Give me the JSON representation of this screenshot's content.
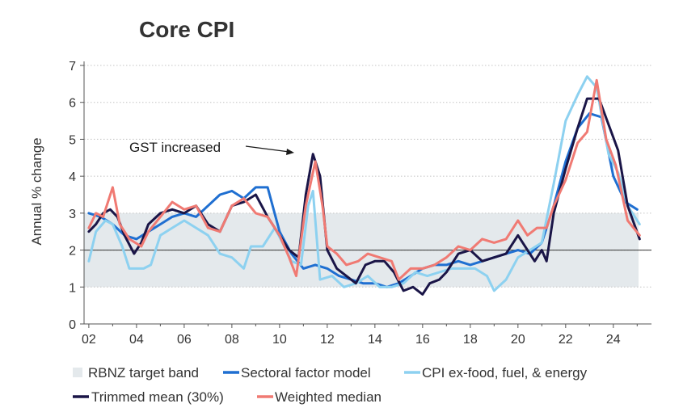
{
  "chart_data": {
    "type": "line",
    "title": "Core CPI",
    "xlabel": "",
    "ylabel": "Annual % change",
    "xlim": [
      2001.8,
      2025.6
    ],
    "ylim": [
      0,
      7
    ],
    "x_tick_labels": [
      "02",
      "04",
      "06",
      "08",
      "10",
      "12",
      "14",
      "16",
      "18",
      "20",
      "22",
      "24"
    ],
    "x_tick_values": [
      2002,
      2004,
      2006,
      2008,
      2010,
      2012,
      2014,
      2016,
      2018,
      2020,
      2022,
      2024
    ],
    "y_ticks": [
      0,
      1,
      2,
      3,
      4,
      5,
      6,
      7
    ],
    "grid": "horizontal dotted",
    "reference_line": 2,
    "target_band": {
      "name": "RBNZ target band",
      "low": 1,
      "high": 3,
      "color": "#e4e9ec"
    },
    "annotation": {
      "text": "GST increased",
      "x": 2011.3,
      "y": 4.6
    },
    "legend_placement": "bottom",
    "series": [
      {
        "name": "Sectoral factor model",
        "color": "#1f6fd1",
        "points": [
          [
            2002,
            3.0
          ],
          [
            2002.5,
            2.9
          ],
          [
            2003,
            2.7
          ],
          [
            2003.5,
            2.4
          ],
          [
            2004,
            2.3
          ],
          [
            2004.5,
            2.5
          ],
          [
            2005,
            2.7
          ],
          [
            2005.5,
            2.9
          ],
          [
            2006,
            3.0
          ],
          [
            2006.5,
            2.9
          ],
          [
            2007,
            3.2
          ],
          [
            2007.5,
            3.5
          ],
          [
            2008,
            3.6
          ],
          [
            2008.5,
            3.4
          ],
          [
            2009,
            3.7
          ],
          [
            2009.5,
            3.7
          ],
          [
            2010,
            2.5
          ],
          [
            2010.5,
            1.9
          ],
          [
            2011,
            1.5
          ],
          [
            2011.5,
            1.6
          ],
          [
            2012,
            1.5
          ],
          [
            2012.5,
            1.3
          ],
          [
            2013,
            1.2
          ],
          [
            2013.5,
            1.1
          ],
          [
            2014,
            1.1
          ],
          [
            2014.5,
            1.0
          ],
          [
            2015,
            1.1
          ],
          [
            2015.5,
            1.3
          ],
          [
            2016,
            1.5
          ],
          [
            2016.5,
            1.6
          ],
          [
            2017,
            1.6
          ],
          [
            2017.5,
            1.7
          ],
          [
            2018,
            1.6
          ],
          [
            2018.5,
            1.7
          ],
          [
            2019,
            1.8
          ],
          [
            2019.5,
            1.9
          ],
          [
            2020,
            2.0
          ],
          [
            2020.5,
            1.9
          ],
          [
            2021,
            2.2
          ],
          [
            2021.5,
            3.2
          ],
          [
            2022,
            4.4
          ],
          [
            2022.5,
            5.3
          ],
          [
            2023,
            5.7
          ],
          [
            2023.5,
            5.6
          ],
          [
            2024,
            4.0
          ],
          [
            2024.5,
            3.3
          ],
          [
            2025,
            3.1
          ]
        ]
      },
      {
        "name": "CPI ex-food, fuel, & energy",
        "color": "#8dd1f0",
        "points": [
          [
            2002,
            1.7
          ],
          [
            2002.3,
            2.5
          ],
          [
            2002.7,
            2.8
          ],
          [
            2003,
            2.7
          ],
          [
            2003.4,
            2.1
          ],
          [
            2003.7,
            1.5
          ],
          [
            2004.3,
            1.5
          ],
          [
            2004.6,
            1.6
          ],
          [
            2005,
            2.4
          ],
          [
            2005.5,
            2.6
          ],
          [
            2006,
            2.8
          ],
          [
            2006.5,
            2.6
          ],
          [
            2007,
            2.4
          ],
          [
            2007.5,
            1.9
          ],
          [
            2008,
            1.8
          ],
          [
            2008.5,
            1.5
          ],
          [
            2008.8,
            2.1
          ],
          [
            2009.3,
            2.1
          ],
          [
            2009.8,
            2.6
          ],
          [
            2010.2,
            2.1
          ],
          [
            2010.5,
            1.7
          ],
          [
            2010.9,
            1.6
          ],
          [
            2011.2,
            3.2
          ],
          [
            2011.4,
            3.6
          ],
          [
            2011.7,
            1.2
          ],
          [
            2012.2,
            1.3
          ],
          [
            2012.7,
            1.0
          ],
          [
            2013.2,
            1.1
          ],
          [
            2013.7,
            1.3
          ],
          [
            2014.2,
            1.0
          ],
          [
            2014.7,
            1.0
          ],
          [
            2015.2,
            1.1
          ],
          [
            2015.7,
            1.4
          ],
          [
            2016.2,
            1.3
          ],
          [
            2016.7,
            1.4
          ],
          [
            2017.2,
            1.5
          ],
          [
            2017.7,
            1.5
          ],
          [
            2018.2,
            1.5
          ],
          [
            2018.7,
            1.3
          ],
          [
            2019,
            0.9
          ],
          [
            2019.5,
            1.2
          ],
          [
            2020,
            1.8
          ],
          [
            2020.5,
            2.0
          ],
          [
            2021,
            2.2
          ],
          [
            2021.5,
            3.8
          ],
          [
            2022,
            5.5
          ],
          [
            2022.5,
            6.2
          ],
          [
            2022.9,
            6.7
          ],
          [
            2023.3,
            6.4
          ],
          [
            2023.8,
            4.6
          ],
          [
            2024.2,
            4.1
          ],
          [
            2024.6,
            3.2
          ],
          [
            2025.1,
            2.7
          ]
        ]
      },
      {
        "name": "Trimmed mean (30%)",
        "color": "#1a1547",
        "points": [
          [
            2002,
            2.5
          ],
          [
            2002.3,
            2.7
          ],
          [
            2002.6,
            3.0
          ],
          [
            2002.9,
            3.1
          ],
          [
            2003.2,
            2.9
          ],
          [
            2003.5,
            2.4
          ],
          [
            2003.9,
            1.9
          ],
          [
            2004.2,
            2.2
          ],
          [
            2004.5,
            2.7
          ],
          [
            2005,
            3.0
          ],
          [
            2005.5,
            3.1
          ],
          [
            2006,
            3.0
          ],
          [
            2006.5,
            3.2
          ],
          [
            2007,
            2.7
          ],
          [
            2007.5,
            2.5
          ],
          [
            2008,
            3.2
          ],
          [
            2008.5,
            3.3
          ],
          [
            2009,
            3.5
          ],
          [
            2009.5,
            2.9
          ],
          [
            2010,
            2.4
          ],
          [
            2010.4,
            2.0
          ],
          [
            2010.8,
            1.8
          ],
          [
            2011.1,
            3.5
          ],
          [
            2011.4,
            4.6
          ],
          [
            2011.7,
            4.0
          ],
          [
            2012,
            2.0
          ],
          [
            2012.4,
            1.5
          ],
          [
            2012.8,
            1.3
          ],
          [
            2013.2,
            1.1
          ],
          [
            2013.6,
            1.6
          ],
          [
            2014,
            1.7
          ],
          [
            2014.4,
            1.7
          ],
          [
            2014.8,
            1.4
          ],
          [
            2015.2,
            0.9
          ],
          [
            2015.6,
            1.0
          ],
          [
            2016,
            0.8
          ],
          [
            2016.3,
            1.1
          ],
          [
            2016.7,
            1.2
          ],
          [
            2017,
            1.4
          ],
          [
            2017.5,
            1.9
          ],
          [
            2018,
            2.0
          ],
          [
            2018.5,
            1.7
          ],
          [
            2019,
            1.8
          ],
          [
            2019.5,
            1.9
          ],
          [
            2020,
            2.4
          ],
          [
            2020.4,
            2.0
          ],
          [
            2020.7,
            1.7
          ],
          [
            2021,
            2.0
          ],
          [
            2021.2,
            1.7
          ],
          [
            2021.5,
            3.0
          ],
          [
            2022,
            4.2
          ],
          [
            2022.5,
            5.3
          ],
          [
            2022.9,
            6.1
          ],
          [
            2023.4,
            6.1
          ],
          [
            2023.8,
            5.4
          ],
          [
            2024.2,
            4.7
          ],
          [
            2024.6,
            3.2
          ],
          [
            2025.1,
            2.3
          ]
        ]
      },
      {
        "name": "Weighted median",
        "color": "#f07a73",
        "points": [
          [
            2002,
            2.6
          ],
          [
            2002.3,
            3.0
          ],
          [
            2002.6,
            2.9
          ],
          [
            2003,
            3.7
          ],
          [
            2003.3,
            2.7
          ],
          [
            2003.7,
            2.3
          ],
          [
            2004.2,
            2.1
          ],
          [
            2004.5,
            2.5
          ],
          [
            2005,
            2.9
          ],
          [
            2005.5,
            3.3
          ],
          [
            2006,
            3.1
          ],
          [
            2006.5,
            3.2
          ],
          [
            2007,
            2.6
          ],
          [
            2007.5,
            2.5
          ],
          [
            2008,
            3.2
          ],
          [
            2008.5,
            3.4
          ],
          [
            2009,
            3.0
          ],
          [
            2009.5,
            2.9
          ],
          [
            2010,
            2.4
          ],
          [
            2010.4,
            1.8
          ],
          [
            2010.7,
            1.3
          ],
          [
            2011.1,
            3.2
          ],
          [
            2011.5,
            4.4
          ],
          [
            2011.8,
            3.2
          ],
          [
            2012,
            2.1
          ],
          [
            2012.4,
            1.9
          ],
          [
            2012.8,
            1.6
          ],
          [
            2013.3,
            1.7
          ],
          [
            2013.7,
            1.9
          ],
          [
            2014.2,
            1.8
          ],
          [
            2014.7,
            1.7
          ],
          [
            2015,
            1.2
          ],
          [
            2015.5,
            1.5
          ],
          [
            2016,
            1.5
          ],
          [
            2016.5,
            1.6
          ],
          [
            2017,
            1.8
          ],
          [
            2017.5,
            2.1
          ],
          [
            2018,
            2.0
          ],
          [
            2018.5,
            2.3
          ],
          [
            2019,
            2.2
          ],
          [
            2019.5,
            2.3
          ],
          [
            2020,
            2.8
          ],
          [
            2020.4,
            2.4
          ],
          [
            2020.8,
            2.6
          ],
          [
            2021.2,
            2.6
          ],
          [
            2021.5,
            3.2
          ],
          [
            2022,
            3.9
          ],
          [
            2022.5,
            4.9
          ],
          [
            2022.9,
            5.2
          ],
          [
            2023.3,
            6.6
          ],
          [
            2023.7,
            5.0
          ],
          [
            2024.1,
            4.3
          ],
          [
            2024.6,
            2.8
          ],
          [
            2025.1,
            2.4
          ]
        ]
      }
    ]
  },
  "legend": {
    "band_label": "RBNZ target band",
    "sectoral_label": "Sectoral factor model",
    "cpiex_label": "CPI ex-food, fuel, & energy",
    "trimmed_label": "Trimmed mean (30%)",
    "median_label": "Weighted median"
  }
}
